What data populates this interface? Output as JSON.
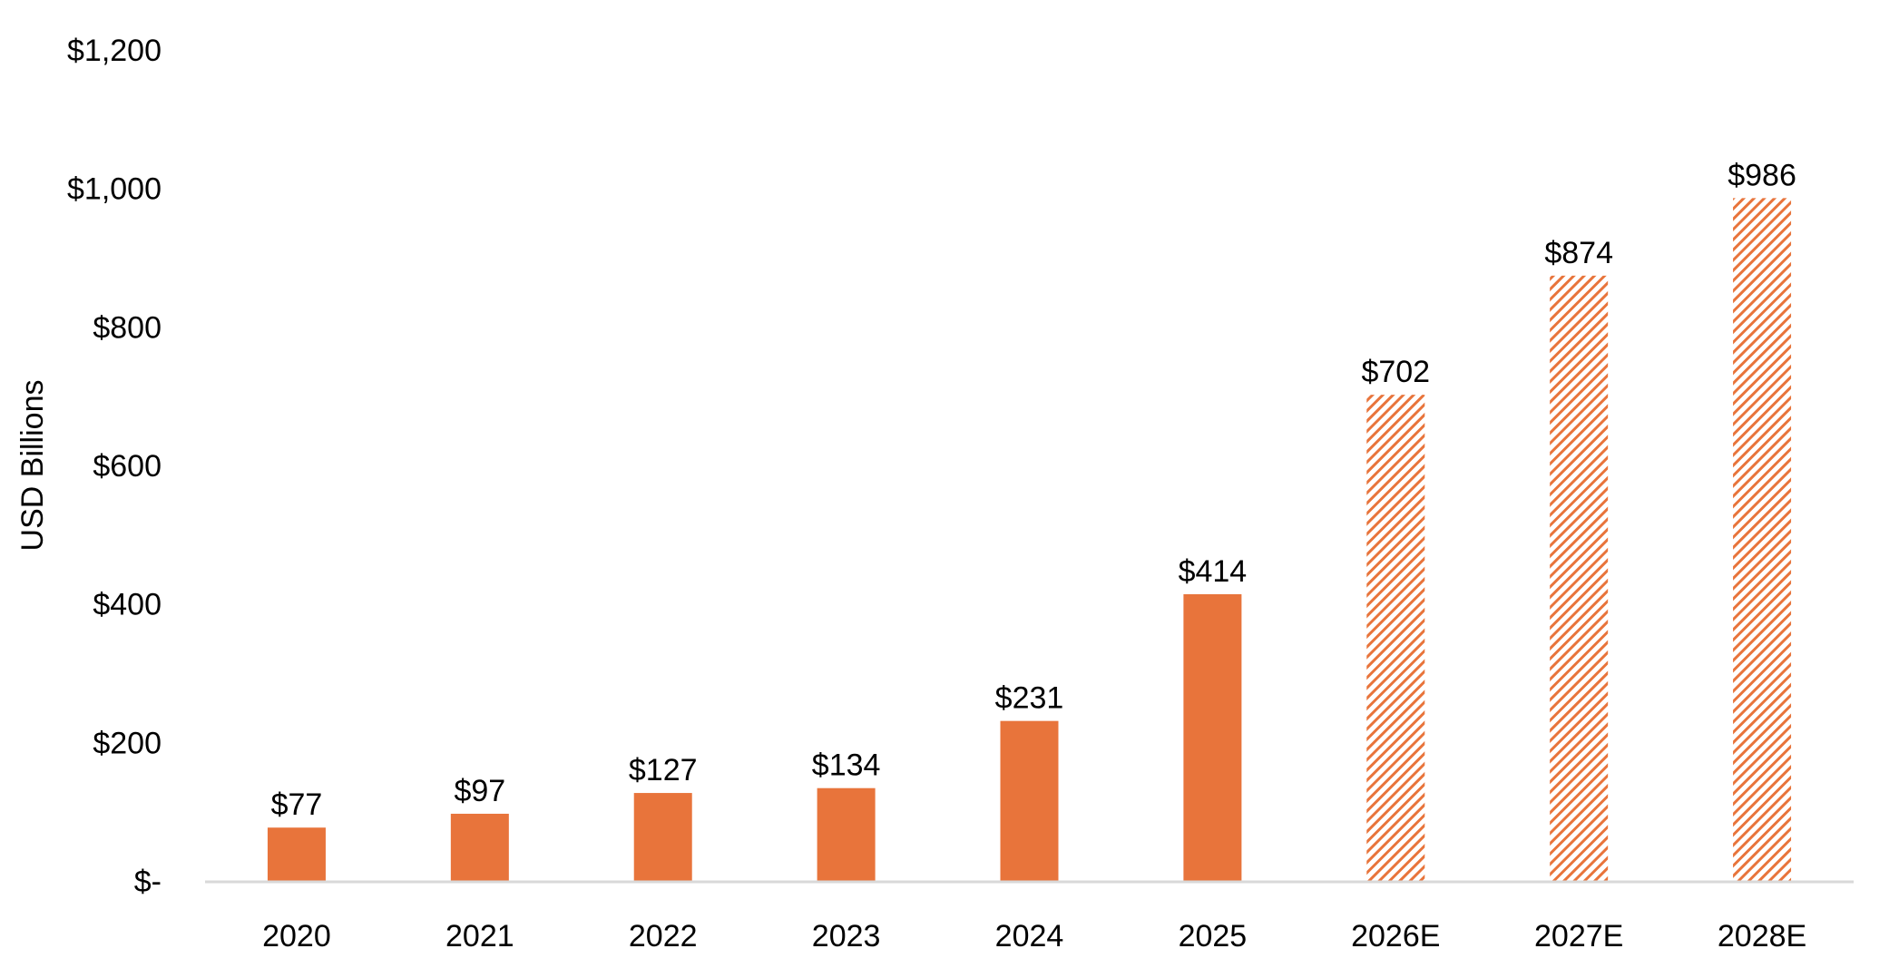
{
  "chart_data": {
    "type": "bar",
    "title": "",
    "xlabel": "",
    "ylabel": "USD Billions",
    "ylim": [
      0,
      1200
    ],
    "y_ticks": [
      0,
      200,
      400,
      600,
      800,
      1000,
      1200
    ],
    "y_tick_labels": [
      "$-",
      "$200",
      "$400",
      "$600",
      "$800",
      "$1,000",
      "$1,200"
    ],
    "grid": false,
    "legend": "none",
    "categories": [
      "2020",
      "2021",
      "2022",
      "2023",
      "2024",
      "2025",
      "2026E",
      "2027E",
      "2028E"
    ],
    "values": [
      77,
      97,
      127,
      134,
      231,
      414,
      702,
      874,
      986
    ],
    "data_labels": [
      "$77",
      "$97",
      "$127",
      "$134",
      "$231",
      "$414",
      "$702",
      "$874",
      "$986"
    ],
    "estimated": [
      false,
      false,
      false,
      false,
      false,
      false,
      true,
      true,
      true
    ],
    "colors": {
      "bar": "#E8743B",
      "axis": "#D9D9D9",
      "text": "#000000"
    }
  }
}
